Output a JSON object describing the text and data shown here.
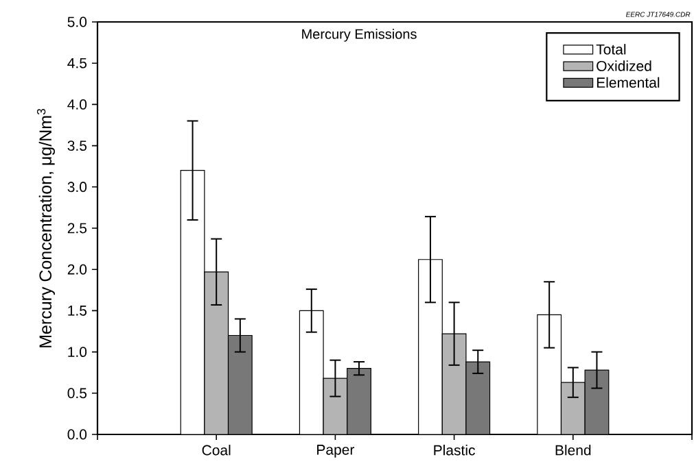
{
  "chart_data": {
    "type": "bar",
    "title": "Mercury Emissions",
    "ylabel": "Mercury Concentration, μg/Nm$^{3}$",
    "annotations": [
      "EERC JT17649.CDR"
    ],
    "categories": [
      "Coal",
      "Paper",
      "Plastic",
      "Blend"
    ],
    "series": [
      {
        "name": "Total",
        "color": "#ffffff",
        "values": [
          3.2,
          1.5,
          2.12,
          1.45
        ],
        "errors": [
          0.6,
          0.26,
          0.52,
          0.4
        ]
      },
      {
        "name": "Oxidized",
        "color": "#b4b4b4",
        "values": [
          1.97,
          0.68,
          1.22,
          0.63
        ],
        "errors": [
          0.4,
          0.22,
          0.38,
          0.18
        ]
      },
      {
        "name": "Elemental",
        "color": "#787878",
        "values": [
          1.2,
          0.8,
          0.88,
          0.78
        ],
        "errors": [
          0.2,
          0.08,
          0.14,
          0.22
        ]
      }
    ],
    "ylim": [
      0,
      5
    ],
    "yticks": [
      {
        "value": 0,
        "label": "0.0"
      },
      {
        "value": 0.5,
        "label": "0.5"
      },
      {
        "value": 1,
        "label": "1.0"
      },
      {
        "value": 1.5,
        "label": "1.5"
      },
      {
        "value": 2,
        "label": "2.0"
      },
      {
        "value": 2.5,
        "label": "2.5"
      },
      {
        "value": 3,
        "label": "3.0"
      },
      {
        "value": 3.5,
        "label": "3.5"
      },
      {
        "value": 4,
        "label": "4.0"
      },
      {
        "value": 4.5,
        "label": "4.5"
      },
      {
        "value": 5,
        "label": "5.0"
      }
    ],
    "grid": false,
    "legend": "top right"
  }
}
